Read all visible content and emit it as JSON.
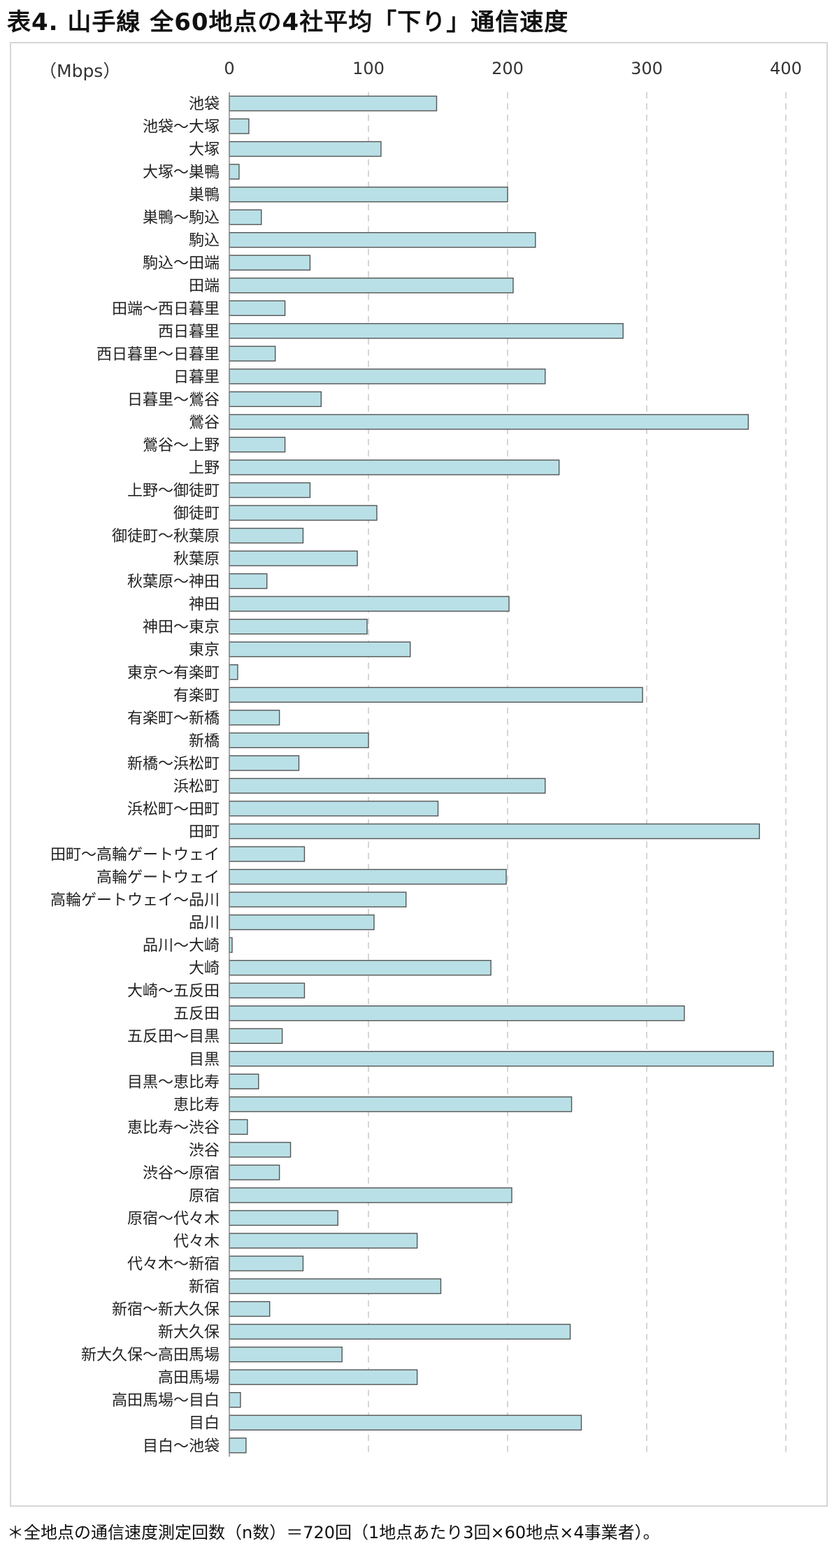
{
  "title": "表4. 山手線 全60地点の4社平均「下り」通信速度",
  "footnote": "＊全地点の通信速度測定回数（n数）＝720回（1地点あたり3回×60地点×4事業者）。",
  "chart_data": {
    "type": "bar",
    "orientation": "horizontal",
    "unit_label": "（Mbps）",
    "xlim": [
      0,
      400
    ],
    "xticks": [
      0,
      100,
      200,
      300,
      400
    ],
    "grid": "vertical dashed",
    "colors": {
      "bar_fill": "#b9e0e6",
      "bar_stroke": "#555555",
      "grid": "#c8c8c8"
    },
    "categories": [
      "池袋",
      "池袋～大塚",
      "大塚",
      "大塚～巣鴨",
      "巣鴨",
      "巣鴨～駒込",
      "駒込",
      "駒込～田端",
      "田端",
      "田端～西日暮里",
      "西日暮里",
      "西日暮里～日暮里",
      "日暮里",
      "日暮里～鶯谷",
      "鶯谷",
      "鶯谷～上野",
      "上野",
      "上野～御徒町",
      "御徒町",
      "御徒町～秋葉原",
      "秋葉原",
      "秋葉原～神田",
      "神田",
      "神田～東京",
      "東京",
      "東京～有楽町",
      "有楽町",
      "有楽町～新橋",
      "新橋",
      "新橋～浜松町",
      "浜松町",
      "浜松町～田町",
      "田町",
      "田町～高輪ゲートウェイ",
      "高輪ゲートウェイ",
      "高輪ゲートウェイ～品川",
      "品川",
      "品川～大崎",
      "大崎",
      "大崎～五反田",
      "五反田",
      "五反田～目黒",
      "目黒",
      "目黒～恵比寿",
      "恵比寿",
      "恵比寿～渋谷",
      "渋谷",
      "渋谷～原宿",
      "原宿",
      "原宿～代々木",
      "代々木",
      "代々木～新宿",
      "新宿",
      "新宿～新大久保",
      "新大久保",
      "新大久保～高田馬場",
      "高田馬場",
      "高田馬場～目白",
      "目白",
      "目白～池袋"
    ],
    "values": [
      149,
      14,
      109,
      7,
      200,
      23,
      220,
      58,
      204,
      40,
      283,
      33,
      227,
      66,
      373,
      40,
      237,
      58,
      106,
      53,
      92,
      27,
      201,
      99,
      130,
      6,
      297,
      36,
      100,
      50,
      227,
      150,
      381,
      54,
      199,
      127,
      104,
      2,
      188,
      54,
      327,
      38,
      391,
      21,
      246,
      13,
      44,
      36,
      203,
      78,
      135,
      53,
      152,
      29,
      245,
      81,
      135,
      8,
      253,
      12
    ]
  }
}
